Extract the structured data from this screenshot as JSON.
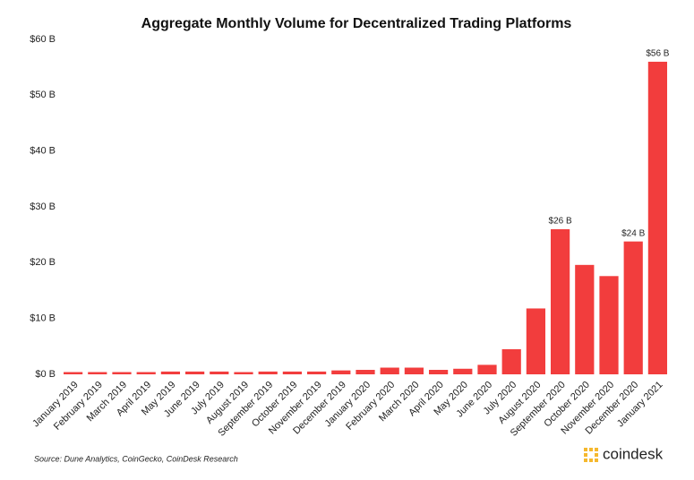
{
  "chart_data": {
    "type": "bar",
    "title": "Aggregate Monthly Volume for Decentralized Trading Platforms",
    "categories": [
      "January 2019",
      "February 2019",
      "March 2019",
      "April 2019",
      "May 2019",
      "June 2019",
      "July 2019",
      "August 2019",
      "September 2019",
      "October 2019",
      "November 2019",
      "December 2019",
      "January 2020",
      "February 2020",
      "March 2020",
      "April 2020",
      "May 2020",
      "June 2020",
      "July 2020",
      "August 2020",
      "September 2020",
      "October 2020",
      "November 2020",
      "December 2020",
      "January 2021"
    ],
    "values": [
      0.4,
      0.4,
      0.4,
      0.4,
      0.5,
      0.5,
      0.5,
      0.4,
      0.5,
      0.5,
      0.5,
      0.7,
      0.8,
      1.2,
      1.2,
      0.8,
      1.0,
      1.7,
      4.5,
      11.8,
      26.0,
      19.6,
      17.6,
      23.8,
      56.0
    ],
    "value_labels": [
      null,
      null,
      null,
      null,
      null,
      null,
      null,
      null,
      null,
      null,
      null,
      null,
      null,
      null,
      null,
      null,
      null,
      null,
      null,
      null,
      "$26 B",
      null,
      null,
      "$24 B",
      "$56 B"
    ],
    "color": "#f23d3d",
    "ylim": [
      0,
      60
    ],
    "yticks": [
      {
        "value": 0,
        "label": "$0 B"
      },
      {
        "value": 10,
        "label": "$10 B"
      },
      {
        "value": 20,
        "label": "$20 B"
      },
      {
        "value": 30,
        "label": "$30 B"
      },
      {
        "value": 40,
        "label": "$40 B"
      },
      {
        "value": 50,
        "label": "$50 B"
      },
      {
        "value": 60,
        "label": "$60 B"
      }
    ],
    "grid": false,
    "source": "Source: Dune Analytics, CoinGecko, CoinDesk Research",
    "brand": "coindesk"
  }
}
